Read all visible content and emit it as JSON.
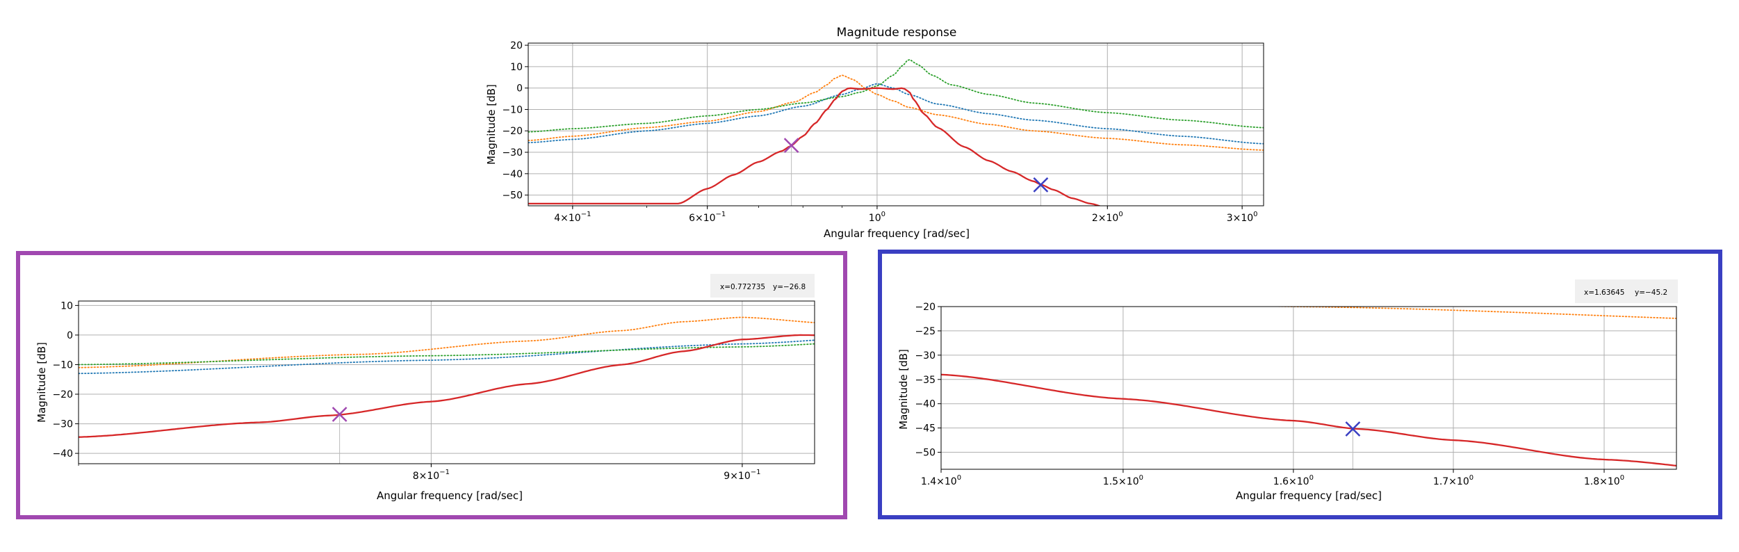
{
  "colors": {
    "series_blue": "#1f77b4",
    "series_orange": "#ff7f0e",
    "series_green": "#2ca02c",
    "series_red": "#d62728",
    "marker_purple": "#a048b0",
    "marker_blue": "#3a3fc2",
    "grid": "#b0b0b0"
  },
  "chart_data": [
    {
      "id": "main",
      "type": "line",
      "title": "Magnitude response",
      "xlabel": "Angular frequency [rad/sec]",
      "ylabel": "Magnitude [dB]",
      "xscale": "log",
      "xlim": [
        0.35,
        3.2
      ],
      "ylim": [
        -55,
        21
      ],
      "grid": true,
      "yticks": [
        20,
        10,
        0,
        -10,
        -20,
        -30,
        -40,
        -50
      ],
      "ytick_labels": [
        "20",
        "10",
        "0",
        "−10",
        "−20",
        "−30",
        "−40",
        "−50"
      ],
      "xticks": [
        {
          "value": 0.4,
          "m": "4",
          "e": "−1"
        },
        {
          "value": 0.6,
          "m": "6",
          "e": "−1"
        },
        {
          "value": 1.0,
          "m": "",
          "e": "0"
        },
        {
          "value": 2.0,
          "m": "2",
          "e": "0"
        },
        {
          "value": 3.0,
          "m": "3",
          "e": "0"
        }
      ],
      "markers": [
        {
          "x": 0.772735,
          "y": -26.8,
          "color": "marker_purple"
        },
        {
          "x": 1.63645,
          "y": -45.2,
          "color": "marker_blue"
        }
      ]
    },
    {
      "id": "zoom_left",
      "type": "line",
      "xlabel": "Angular frequency [rad/sec]",
      "ylabel": "Magnitude [dB]",
      "xscale": "log",
      "xlim": [
        0.7,
        0.925
      ],
      "ylim": [
        -43.5,
        11.5
      ],
      "grid": true,
      "yticks": [
        10,
        0,
        -10,
        -20,
        -30,
        -40
      ],
      "ytick_labels": [
        "10",
        "0",
        "−10",
        "−20",
        "−30",
        "−40"
      ],
      "xticks": [
        {
          "value": 0.8,
          "m": "8",
          "e": "−1"
        },
        {
          "value": 0.9,
          "m": "9",
          "e": "−1"
        }
      ],
      "readout": {
        "x": "x=0.772735",
        "y": "y=−26.8"
      },
      "marker": {
        "x": 0.772735,
        "y": -26.8,
        "color": "marker_purple"
      },
      "frame_color": "marker_purple"
    },
    {
      "id": "zoom_right",
      "type": "line",
      "xlabel": "Angular frequency [rad/sec]",
      "ylabel": "Magnitude [dB]",
      "xscale": "log",
      "xlim": [
        1.4,
        1.85
      ],
      "ylim": [
        -53.5,
        -20
      ],
      "grid": true,
      "yticks": [
        -20,
        -25,
        -30,
        -35,
        -40,
        -45,
        -50
      ],
      "ytick_labels": [
        "−20",
        "−25",
        "−30",
        "−35",
        "−40",
        "−45",
        "−50"
      ],
      "xticks": [
        {
          "value": 1.4,
          "m": "1.4",
          "e": "0"
        },
        {
          "value": 1.5,
          "m": "1.5",
          "e": "0"
        },
        {
          "value": 1.6,
          "m": "1.6",
          "e": "0"
        },
        {
          "value": 1.7,
          "m": "1.7",
          "e": "0"
        },
        {
          "value": 1.8,
          "m": "1.8",
          "e": "0"
        }
      ],
      "readout": {
        "x": "x=1.63645",
        "y": "y=−45.2"
      },
      "marker": {
        "x": 1.63645,
        "y": -45.2,
        "color": "marker_blue"
      },
      "frame_color": "marker_blue"
    }
  ],
  "series": [
    {
      "key": "blue",
      "color": "series_blue",
      "style": "dotted",
      "x": [
        0.35,
        0.4,
        0.5,
        0.6,
        0.7,
        0.8,
        0.9,
        0.95,
        1.0,
        1.05,
        1.1,
        1.2,
        1.4,
        1.6,
        2.0,
        2.5,
        3.2
      ],
      "y": [
        -25.5,
        -24,
        -20,
        -16.5,
        -13,
        -8.5,
        -3,
        -0.5,
        2,
        0,
        -3,
        -7.5,
        -12,
        -15,
        -19,
        -22.5,
        -26
      ]
    },
    {
      "key": "orange",
      "color": "series_orange",
      "style": "dotted",
      "x": [
        0.35,
        0.4,
        0.5,
        0.6,
        0.7,
        0.78,
        0.83,
        0.86,
        0.88,
        0.9,
        0.93,
        0.97,
        1.0,
        1.05,
        1.1,
        1.2,
        1.4,
        1.6,
        2.0,
        2.5,
        3.2
      ],
      "y": [
        -24.5,
        -22.5,
        -18.5,
        -15.5,
        -11,
        -6.5,
        -2,
        1.5,
        4.5,
        6,
        4,
        -0.5,
        -3,
        -6,
        -9,
        -12.5,
        -17,
        -20,
        -23.5,
        -26.5,
        -29
      ]
    },
    {
      "key": "green",
      "color": "series_green",
      "style": "dotted",
      "x": [
        0.35,
        0.4,
        0.5,
        0.6,
        0.7,
        0.8,
        0.9,
        0.95,
        1.0,
        1.05,
        1.08,
        1.1,
        1.13,
        1.18,
        1.25,
        1.4,
        1.6,
        2.0,
        2.5,
        3.2
      ],
      "y": [
        -20.5,
        -19,
        -16.5,
        -13,
        -10,
        -7,
        -4,
        -2,
        1,
        6,
        10.5,
        13.5,
        11,
        6,
        1.5,
        -3,
        -7,
        -11.5,
        -15,
        -18.5
      ]
    },
    {
      "key": "red",
      "color": "series_red",
      "style": "solid",
      "x": [
        0.55,
        0.6,
        0.65,
        0.7,
        0.75,
        0.77,
        0.8,
        0.83,
        0.86,
        0.88,
        0.9,
        0.92,
        0.95,
        1.0,
        1.05,
        1.08,
        1.1,
        1.12,
        1.15,
        1.2,
        1.3,
        1.4,
        1.5,
        1.6,
        1.64,
        1.7,
        1.8,
        1.9,
        2.0,
        2.1,
        2.2
      ],
      "y": [
        -54,
        -47,
        -40.5,
        -34.5,
        -29.5,
        -27.2,
        -22.5,
        -16.5,
        -10,
        -5.5,
        -1.5,
        0,
        -0.5,
        0,
        -0.5,
        0,
        -1.5,
        -6,
        -12,
        -18.5,
        -27.5,
        -34,
        -39,
        -43.5,
        -45.2,
        -47.5,
        -51.5,
        -54,
        -56,
        -58,
        -60
      ]
    }
  ]
}
